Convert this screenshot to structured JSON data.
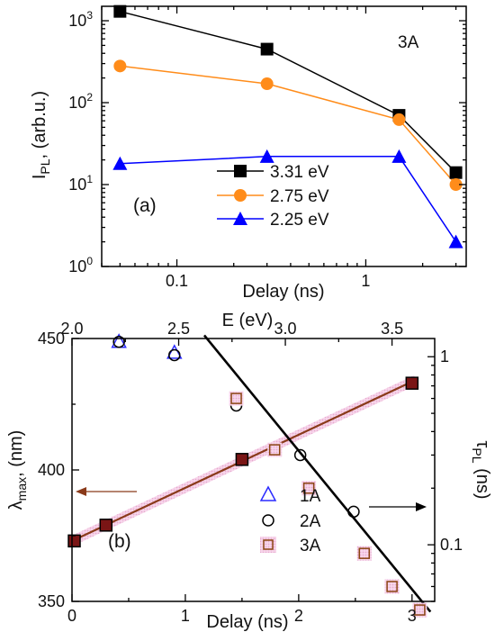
{
  "chart_data": [
    {
      "type": "line",
      "panel_label": "(a)",
      "sample_label": "3A",
      "xlabel": "Delay (ns)",
      "ylabel_main": "I",
      "ylabel_sub": "PL",
      "ylabel_rest": ", (arb.u.)",
      "x_scale": "log",
      "y_scale": "log",
      "xlim": [
        0.04,
        3.4
      ],
      "ylim": [
        1,
        1500
      ],
      "x_ticks": [
        {
          "value": 0.1,
          "label": "0.1"
        },
        {
          "value": 1,
          "label": "1"
        }
      ],
      "y_ticks": [
        {
          "value": 1,
          "base": "10",
          "exp": "0"
        },
        {
          "value": 10,
          "base": "10",
          "exp": "1"
        },
        {
          "value": 100,
          "base": "10",
          "exp": "2"
        },
        {
          "value": 1000,
          "base": "10",
          "exp": "3"
        }
      ],
      "legend_position": "bottom-left",
      "series": [
        {
          "name": "3.31 eV",
          "color": "#000000",
          "marker": "square",
          "x": [
            0.05,
            0.3,
            1.5,
            3.0
          ],
          "y": [
            1300,
            450,
            70,
            14
          ]
        },
        {
          "name": "2.75 eV",
          "color": "#ff8c1a",
          "marker": "circle",
          "x": [
            0.05,
            0.3,
            1.5,
            3.0
          ],
          "y": [
            280,
            170,
            62,
            10
          ]
        },
        {
          "name": "2.25 eV",
          "color": "#0000ff",
          "marker": "triangle",
          "x": [
            0.05,
            0.3,
            1.5,
            3.0
          ],
          "y": [
            18,
            22,
            22,
            2
          ]
        }
      ]
    },
    {
      "type": "scatter",
      "panel_label": "(b)",
      "xlabel": "Delay (ns)",
      "x2label": "E (eV)",
      "ylabel_main": "λ",
      "ylabel_sub": "max",
      "ylabel_rest": ", (nm)",
      "y2label_main": "τ",
      "y2label_sub": "PL",
      "y2label_rest": " (ns)",
      "xlim": [
        0,
        3.2
      ],
      "ylim": [
        350,
        450
      ],
      "x2lim": [
        2.0,
        3.7
      ],
      "y2_scale": "log",
      "y2lim": [
        0.05,
        1.25
      ],
      "x_ticks": [
        {
          "value": 0,
          "label": "0"
        },
        {
          "value": 1,
          "label": "1"
        },
        {
          "value": 2,
          "label": "2"
        },
        {
          "value": 3,
          "label": "3"
        }
      ],
      "y_ticks": [
        {
          "value": 350,
          "label": "350"
        },
        {
          "value": 400,
          "label": "400"
        },
        {
          "value": 450,
          "label": "450"
        }
      ],
      "x2_ticks": [
        {
          "value": 2.0,
          "label": "2.0"
        },
        {
          "value": 2.5,
          "label": "2.5"
        },
        {
          "value": 3.0,
          "label": "3.0"
        },
        {
          "value": 3.5,
          "label": "3.5"
        }
      ],
      "y2_ticks": [
        {
          "value": 1,
          "label": "1"
        },
        {
          "value": 0.1,
          "label": "0.1"
        }
      ],
      "lambda_series": {
        "color": "#000000",
        "face_color": "#7a1515",
        "marker": "square",
        "x": [
          0.02,
          0.3,
          1.5,
          3.0
        ],
        "y": [
          373,
          379,
          404,
          433
        ]
      },
      "lambda_fit": {
        "x": [
          0.0,
          3.02
        ],
        "y": [
          373,
          434
        ],
        "color": "#8a3a1a"
      },
      "tau_series": [
        {
          "name": "1A",
          "color": "#2a2aff",
          "marker": "triangle-open",
          "E": [
            2.22,
            2.48
          ],
          "tau": [
            1.2,
            1.05
          ]
        },
        {
          "name": "2A",
          "color": "#000000",
          "marker": "circle-open",
          "E": [
            2.22,
            2.48,
            2.77,
            3.07,
            3.32
          ],
          "tau": [
            1.2,
            1.02,
            0.55,
            0.3,
            0.15
          ]
        },
        {
          "name": "3A",
          "color": "#8b4513",
          "marker": "square-open",
          "E": [
            2.77,
            2.95,
            3.11,
            3.37,
            3.5,
            3.63
          ],
          "tau": [
            0.6,
            0.32,
            0.2,
            0.09,
            0.06,
            0.045
          ]
        }
      ],
      "tau_fit": {
        "E": [
          2.62,
          3.68
        ],
        "tau": [
          1.3,
          0.044
        ],
        "color": "#000000"
      },
      "arrow_left_color": "#8a3a1a",
      "arrow_right_color": "#000000",
      "legend_position": "bottom-right"
    }
  ]
}
